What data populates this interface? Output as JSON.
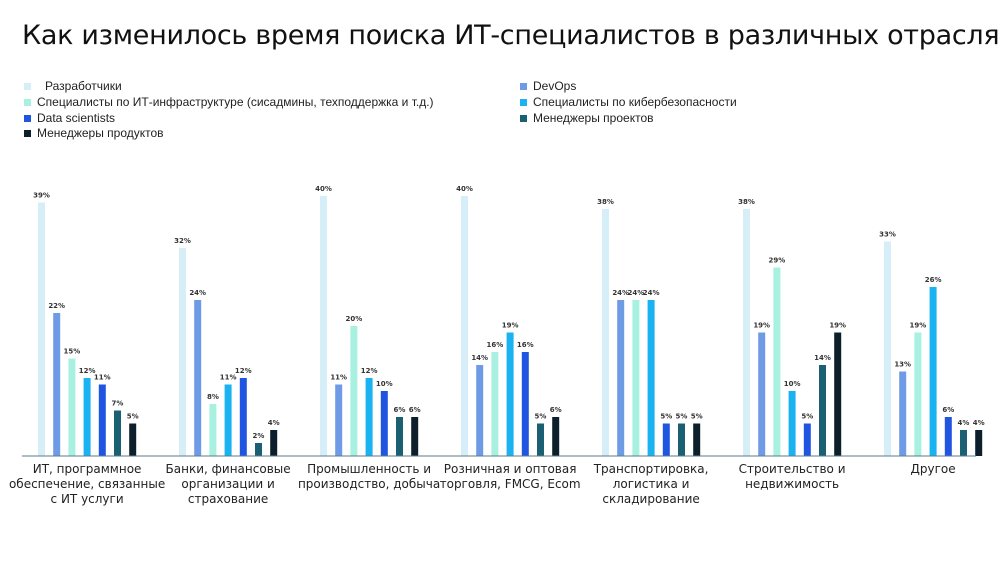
{
  "title": "Как изменилось время поиска ИТ-специалистов в различных отраслях",
  "chart_data": {
    "type": "bar",
    "categories": [
      [
        "ИТ, программное",
        "обеспечение, связанные",
        "с ИТ услуги"
      ],
      [
        "Банки, финансовые",
        "организации и",
        "страхование"
      ],
      [
        "Промышленность и",
        "производство, добыча"
      ],
      [
        "Розничная и оптовая",
        "торговля, FMCG, Ecom"
      ],
      [
        "Транспортировка,",
        "логистика и",
        "складирование"
      ],
      [
        "Строительство и",
        "недвижимость"
      ],
      [
        "Другое"
      ]
    ],
    "series": [
      {
        "name": "Разработчики",
        "color": "#d5eef8",
        "values": [
          39,
          32,
          40,
          40,
          38,
          38,
          33
        ]
      },
      {
        "name": "DevOps",
        "color": "#6f9be6",
        "values": [
          22,
          24,
          11,
          14,
          24,
          19,
          13
        ]
      },
      {
        "name": "Специалисты по ИТ-инфраструктуре (сисадмины, техподдержка и т.д.)",
        "color": "#a8f0e0",
        "values": [
          15,
          8,
          20,
          16,
          24,
          29,
          19
        ]
      },
      {
        "name": "Специалисты по кибербезопасности",
        "color": "#1ab2f0",
        "values": [
          12,
          11,
          12,
          19,
          24,
          10,
          26
        ]
      },
      {
        "name": "Data scientists",
        "color": "#1f55e0",
        "values": [
          11,
          12,
          10,
          16,
          5,
          5,
          6
        ]
      },
      {
        "name": "Менеджеры проектов",
        "color": "#1b5f72",
        "values": [
          7,
          2,
          6,
          5,
          5,
          14,
          4
        ]
      },
      {
        "name": "Менеджеры продуктов",
        "color": "#0d1f2a",
        "values": [
          5,
          4,
          6,
          6,
          5,
          19,
          4
        ]
      }
    ],
    "value_suffix": "%",
    "ylim": [
      0,
      42
    ]
  }
}
